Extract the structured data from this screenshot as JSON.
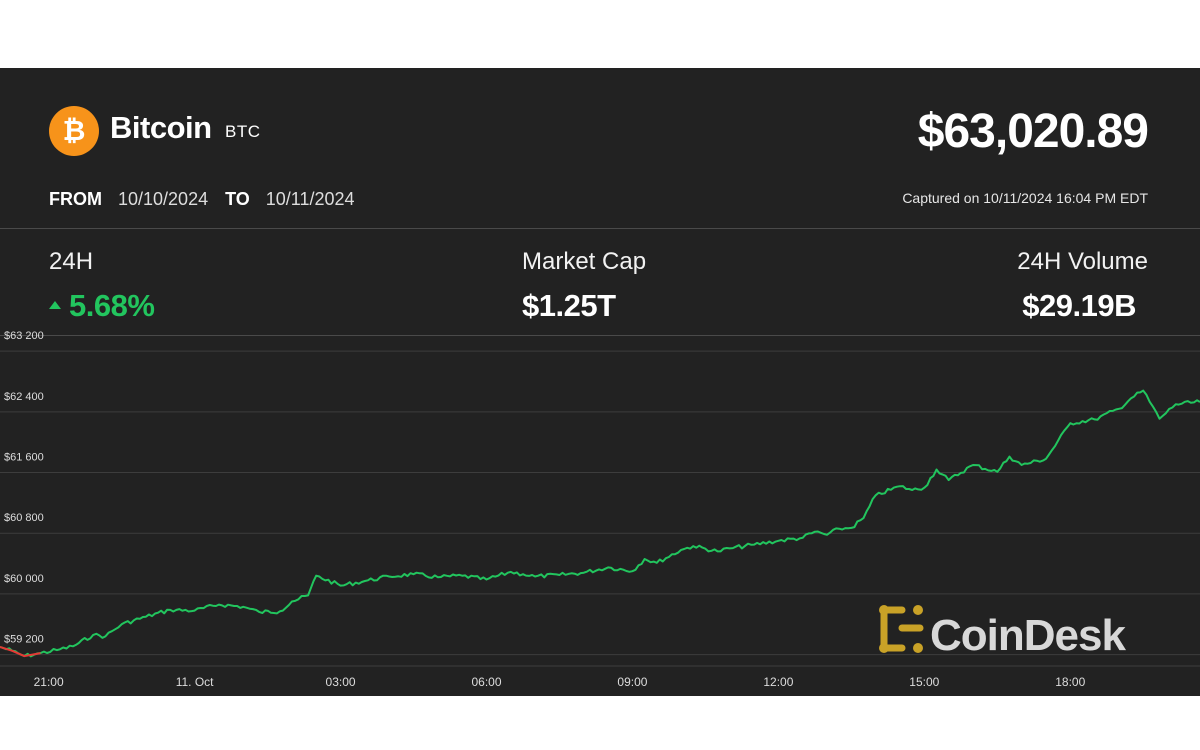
{
  "coin": {
    "name": "Bitcoin",
    "symbol": "BTC",
    "logo_icon": "bitcoin-icon",
    "logo_color": "#f7931a",
    "logo_glyph": "₿"
  },
  "price": "$63,020.89",
  "range": {
    "from_label": "FROM",
    "from_date": "10/10/2024",
    "to_label": "TO",
    "to_date": "10/11/2024"
  },
  "captured": "Captured on 10/11/2024 16:04 PM EDT",
  "stats": {
    "change_label": "24H",
    "change_value": "5.68%",
    "change_direction": "up",
    "market_cap_label": "Market Cap",
    "market_cap_value": "$1.25T",
    "volume_label": "24H Volume",
    "volume_value": "$29.19B"
  },
  "watermark": "CoinDesk",
  "colors": {
    "background": "#222222",
    "up": "#22c55e",
    "down": "#e53935",
    "brand_gold": "#c9a227"
  },
  "chart_data": {
    "type": "line",
    "title": "",
    "xlabel": "",
    "ylabel": "",
    "ylim": [
      59050,
      63400
    ],
    "grid": true,
    "y_ticks": [
      59200,
      60000,
      60800,
      61600,
      62400,
      63200
    ],
    "y_tick_labels": [
      "$59 200",
      "$60 000",
      "$60 800",
      "$61 600",
      "$62 400",
      "$63 200"
    ],
    "x_range": [
      "2024-10-10 20:00",
      "2024-10-11 20:40"
    ],
    "x_ticks": [
      "2024-10-10 21:00",
      "2024-10-11 00:00",
      "2024-10-11 03:00",
      "2024-10-11 06:00",
      "2024-10-11 09:00",
      "2024-10-11 12:00",
      "2024-10-11 15:00",
      "2024-10-11 18:00"
    ],
    "x_tick_labels": [
      "21:00",
      "11. Oct",
      "03:00",
      "06:00",
      "09:00",
      "12:00",
      "15:00",
      "18:00"
    ],
    "series": [
      {
        "color": "#22c55e",
        "x": [
          "2024-10-10 20:00",
          "2024-10-10 20:15",
          "2024-10-10 20:30",
          "2024-10-10 20:50",
          "2024-10-10 21:10",
          "2024-10-10 21:30",
          "2024-10-10 21:55",
          "2024-10-10 22:10",
          "2024-10-10 22:30",
          "2024-10-10 23:00",
          "2024-10-10 23:30",
          "2024-10-11 00:00",
          "2024-10-11 00:30",
          "2024-10-11 01:00",
          "2024-10-11 01:20",
          "2024-10-11 01:45",
          "2024-10-11 02:00",
          "2024-10-11 02:20",
          "2024-10-11 02:30",
          "2024-10-11 03:00",
          "2024-10-11 03:30",
          "2024-10-11 04:00",
          "2024-10-11 04:30",
          "2024-10-11 05:00",
          "2024-10-11 05:30",
          "2024-10-11 06:00",
          "2024-10-11 06:30",
          "2024-10-11 06:45",
          "2024-10-11 07:00",
          "2024-10-11 07:30",
          "2024-10-11 08:00",
          "2024-10-11 08:30",
          "2024-10-11 09:00",
          "2024-10-11 09:15",
          "2024-10-11 09:30",
          "2024-10-11 10:00",
          "2024-10-11 10:15",
          "2024-10-11 10:45",
          "2024-10-11 11:00",
          "2024-10-11 11:30",
          "2024-10-11 12:00",
          "2024-10-11 12:30",
          "2024-10-11 12:45",
          "2024-10-11 13:00",
          "2024-10-11 13:15",
          "2024-10-11 13:30",
          "2024-10-11 13:45",
          "2024-10-11 14:00",
          "2024-10-11 14:30",
          "2024-10-11 14:45",
          "2024-10-11 15:00",
          "2024-10-11 15:15",
          "2024-10-11 15:30",
          "2024-10-11 16:00",
          "2024-10-11 16:30",
          "2024-10-11 16:45",
          "2024-10-11 17:00",
          "2024-10-11 17:30",
          "2024-10-11 18:00",
          "2024-10-11 18:30",
          "2024-10-11 19:00",
          "2024-10-11 19:15",
          "2024-10-11 19:30",
          "2024-10-11 19:50",
          "2024-10-11 20:10",
          "2024-10-11 20:40"
        ],
        "y": [
          59300,
          59250,
          59180,
          59220,
          59260,
          59310,
          59460,
          59440,
          59600,
          59700,
          59790,
          59780,
          59860,
          59830,
          59760,
          59770,
          59900,
          59980,
          60240,
          60110,
          60170,
          60230,
          60260,
          60220,
          60240,
          60190,
          60290,
          60260,
          60230,
          60250,
          60280,
          60350,
          60300,
          60460,
          60410,
          60580,
          60630,
          60560,
          60600,
          60650,
          60700,
          60740,
          60820,
          60780,
          60860,
          60870,
          61000,
          61300,
          61420,
          61370,
          61400,
          61640,
          61500,
          61700,
          61610,
          61810,
          61700,
          61780,
          62250,
          62300,
          62440,
          62580,
          62680,
          62310,
          62500,
          62530
        ]
      }
    ],
    "down_segment": {
      "color": "#e53935",
      "x": [
        "2024-10-10 20:00",
        "2024-10-10 20:15",
        "2024-10-10 20:30",
        "2024-10-10 20:50"
      ],
      "y": [
        59300,
        59250,
        59180,
        59220
      ]
    }
  }
}
